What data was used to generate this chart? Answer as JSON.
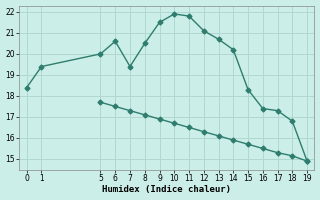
{
  "xlabel": "Humidex (Indice chaleur)",
  "bg_color": "#cceee8",
  "grid_color": "#b0d8d0",
  "line_color": "#2e7d6e",
  "line1_x": [
    0,
    1,
    5,
    6,
    7,
    8,
    9,
    10,
    11,
    12,
    13,
    14,
    15,
    16,
    17,
    18,
    19
  ],
  "line1_y": [
    18.4,
    19.4,
    20.0,
    20.6,
    19.4,
    20.5,
    21.5,
    21.9,
    21.8,
    21.1,
    20.7,
    20.2,
    18.3,
    17.4,
    17.3,
    16.8,
    14.9
  ],
  "line2_x": [
    5,
    6,
    7,
    8,
    9,
    10,
    11,
    12,
    13,
    14,
    15,
    16,
    17,
    18,
    19
  ],
  "line2_y": [
    17.7,
    17.5,
    17.3,
    17.1,
    16.9,
    16.7,
    16.5,
    16.3,
    16.1,
    15.9,
    15.7,
    15.5,
    15.3,
    15.15,
    14.9
  ],
  "xlim": [
    -0.5,
    19.5
  ],
  "ylim": [
    14.5,
    22.3
  ],
  "xticks": [
    0,
    1,
    5,
    6,
    7,
    8,
    9,
    10,
    11,
    12,
    13,
    14,
    15,
    16,
    17,
    18,
    19
  ],
  "yticks": [
    15,
    16,
    17,
    18,
    19,
    20,
    21,
    22
  ],
  "marker": "D",
  "marker_size": 2.5,
  "linewidth": 1.0,
  "tick_fontsize": 5.5,
  "xlabel_fontsize": 6.5
}
